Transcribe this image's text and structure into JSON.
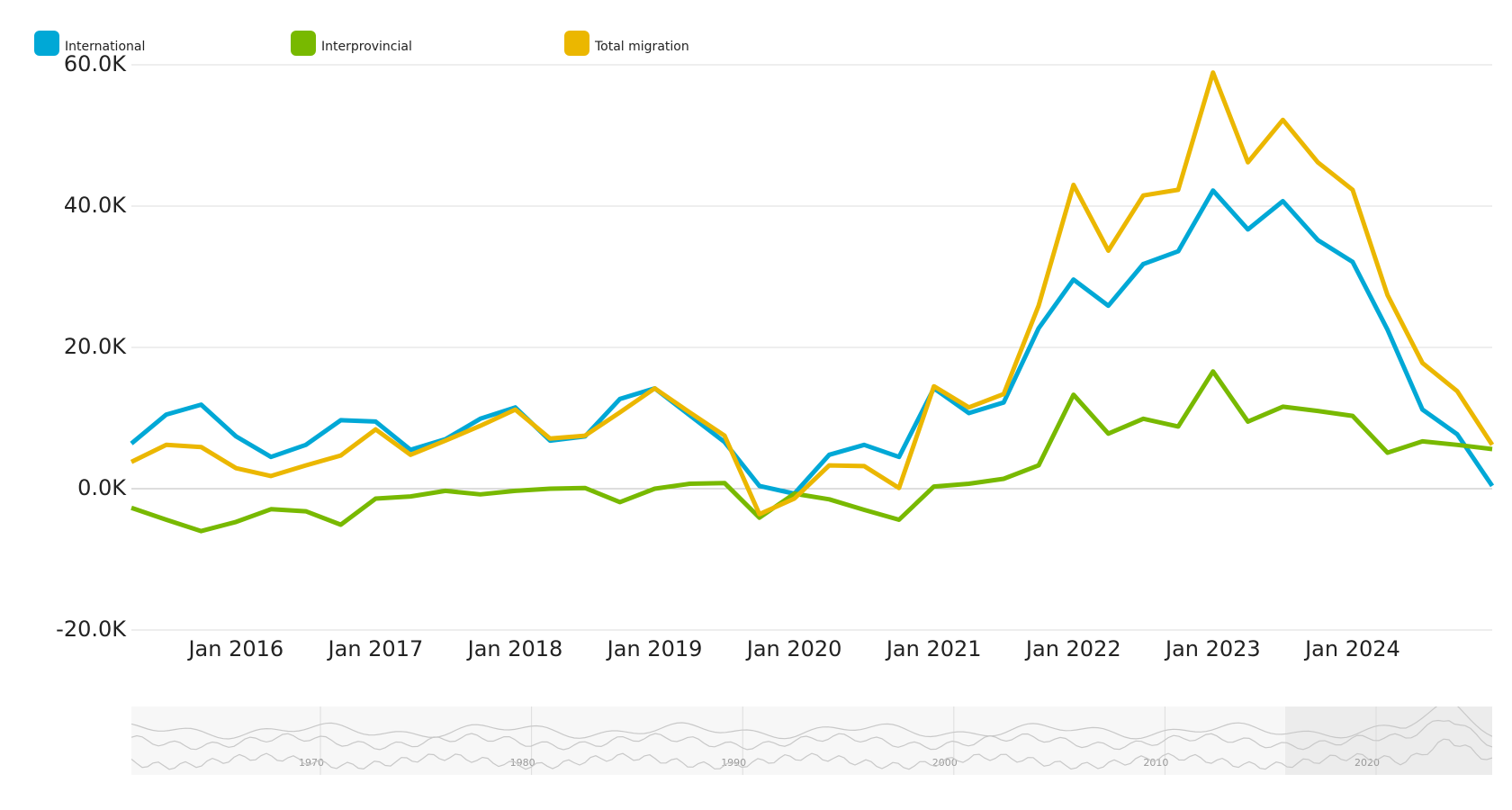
{
  "chart_data": {
    "type": "line",
    "x": [
      "2015-04",
      "2015-07",
      "2015-10",
      "2016-01",
      "2016-04",
      "2016-07",
      "2016-10",
      "2017-01",
      "2017-04",
      "2017-07",
      "2017-10",
      "2018-01",
      "2018-04",
      "2018-07",
      "2018-10",
      "2019-01",
      "2019-04",
      "2019-07",
      "2019-10",
      "2020-01",
      "2020-04",
      "2020-07",
      "2020-10",
      "2021-01",
      "2021-04",
      "2021-07",
      "2021-10",
      "2022-01",
      "2022-04",
      "2022-07",
      "2022-10",
      "2023-01",
      "2023-04",
      "2023-07",
      "2023-10",
      "2024-01",
      "2024-04",
      "2024-07",
      "2024-10",
      "2025-01"
    ],
    "series": [
      {
        "name": "International",
        "color": "#00a8d6",
        "values": [
          6.4,
          10.5,
          11.9,
          7.4,
          4.5,
          6.2,
          9.7,
          9.5,
          5.5,
          7.0,
          9.9,
          11.5,
          6.8,
          7.4,
          12.7,
          14.2,
          10.4,
          6.6,
          0.4,
          -0.7,
          4.8,
          6.2,
          4.5,
          14.2,
          10.7,
          12.2,
          22.7,
          29.6,
          25.9,
          31.8,
          33.6,
          42.2,
          36.7,
          40.7,
          35.2,
          32.1,
          22.5,
          11.2,
          7.7,
          0.4
        ]
      },
      {
        "name": "Interprovincial",
        "color": "#78b900",
        "values": [
          -2.7,
          -4.4,
          -6.0,
          -4.7,
          -2.9,
          -3.2,
          -5.1,
          -1.4,
          -1.1,
          -0.3,
          -0.8,
          -0.3,
          0.0,
          0.1,
          -1.9,
          0.0,
          0.7,
          0.8,
          -4.1,
          -0.7,
          -1.5,
          -3.0,
          -4.4,
          0.3,
          0.7,
          1.4,
          3.3,
          13.3,
          7.8,
          9.9,
          8.8,
          16.6,
          9.5,
          11.6,
          11.0,
          10.3,
          5.1,
          6.7,
          6.2,
          5.6
        ]
      },
      {
        "name": "Total migration",
        "color": "#ebb700",
        "values": [
          3.8,
          6.2,
          5.9,
          2.9,
          1.8,
          3.3,
          4.7,
          8.4,
          4.8,
          6.8,
          8.9,
          11.2,
          7.1,
          7.5,
          10.8,
          14.2,
          10.8,
          7.5,
          -3.6,
          -1.4,
          3.3,
          3.2,
          0.1,
          14.5,
          11.5,
          13.4,
          25.9,
          43.0,
          33.7,
          41.5,
          42.3,
          58.9,
          46.2,
          52.2,
          46.2,
          42.3,
          27.4,
          17.8,
          13.8,
          6.2
        ]
      }
    ],
    "xlim": [
      "2015-04",
      "2025-01"
    ],
    "xticks": [
      {
        "value": "2016-01",
        "label": "Jan 2016"
      },
      {
        "value": "2017-01",
        "label": "Jan 2017"
      },
      {
        "value": "2018-01",
        "label": "Jan 2018"
      },
      {
        "value": "2019-01",
        "label": "Jan 2019"
      },
      {
        "value": "2020-01",
        "label": "Jan 2020"
      },
      {
        "value": "2021-01",
        "label": "Jan 2021"
      },
      {
        "value": "2022-01",
        "label": "Jan 2022"
      },
      {
        "value": "2023-01",
        "label": "Jan 2023"
      },
      {
        "value": "2024-01",
        "label": "Jan 2024"
      }
    ],
    "ylim": [
      -20,
      60
    ],
    "yticks": [
      {
        "value": -20,
        "label": "-20.0K"
      },
      {
        "value": 0,
        "label": "0.0K"
      },
      {
        "value": 20,
        "label": "20.0K"
      },
      {
        "value": 40,
        "label": "40.0K"
      },
      {
        "value": 60,
        "label": "60.0K"
      }
    ],
    "grid": true,
    "legend": "top-left",
    "navigator": {
      "labels": [
        "1970",
        "1980",
        "1990",
        "2000",
        "2010",
        "2020"
      ]
    }
  }
}
